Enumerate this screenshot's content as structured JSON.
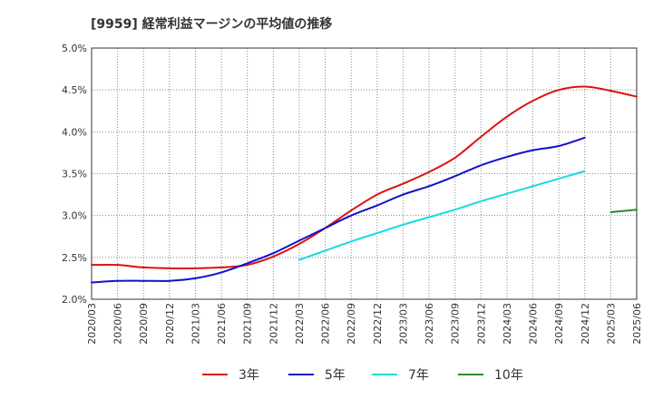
{
  "chart_data": {
    "type": "line",
    "title": "[9959]  経常利益マージンの平均値の推移",
    "xlabel": "",
    "ylabel": "",
    "ylim": [
      0.02,
      0.05
    ],
    "y_ticks": [
      "2.0%",
      "2.5%",
      "3.0%",
      "3.5%",
      "4.0%",
      "4.5%",
      "5.0%"
    ],
    "x_ticks": [
      "2020/03",
      "2020/06",
      "2020/09",
      "2020/12",
      "2021/03",
      "2021/06",
      "2021/09",
      "2021/12",
      "2022/03",
      "2022/06",
      "2022/09",
      "2022/12",
      "2023/03",
      "2023/06",
      "2023/09",
      "2023/12",
      "2024/03",
      "2024/06",
      "2024/09",
      "2024/12",
      "2025/03",
      "2025/06"
    ],
    "grid": true,
    "legend_position": "bottom",
    "series": [
      {
        "name": "3年",
        "color": "#dd1111",
        "start_index": 0,
        "values": [
          0.0241,
          0.0241,
          0.0238,
          0.0237,
          0.0237,
          0.0238,
          0.0241,
          0.0251,
          0.0266,
          0.0285,
          0.0306,
          0.0325,
          0.0338,
          0.0352,
          0.0369,
          0.0394,
          0.0418,
          0.0437,
          0.045,
          0.0454,
          0.0449,
          0.0442
        ]
      },
      {
        "name": "5年",
        "color": "#1111cc",
        "start_index": 0,
        "values": [
          0.022,
          0.0222,
          0.0222,
          0.0222,
          0.0225,
          0.0232,
          0.0243,
          0.0255,
          0.027,
          0.0285,
          0.03,
          0.0312,
          0.0325,
          0.0335,
          0.0347,
          0.036,
          0.037,
          0.0378,
          0.0383,
          0.0393
        ]
      },
      {
        "name": "7年",
        "color": "#11dddd",
        "start_index": 8,
        "values": [
          0.0247,
          0.0258,
          0.0269,
          0.0279,
          0.0289,
          0.0298,
          0.0307,
          0.0317,
          0.0326,
          0.0335,
          0.0344,
          0.0353
        ]
      },
      {
        "name": "10年",
        "color": "#2e8b2e",
        "start_index": 20,
        "values": [
          0.0304,
          0.0307
        ]
      }
    ]
  }
}
